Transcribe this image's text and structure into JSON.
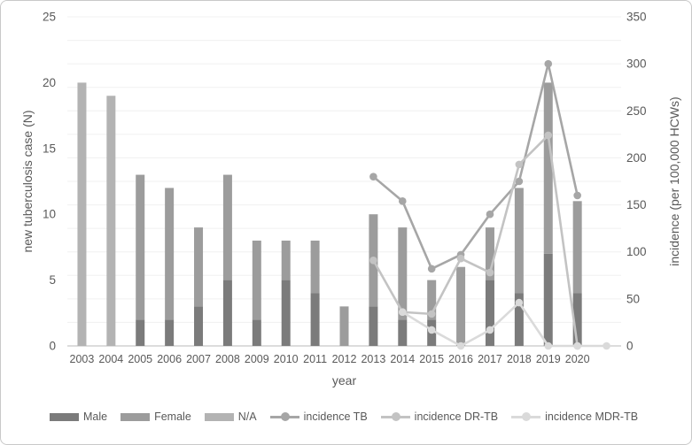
{
  "chart_data": {
    "type": "combo-bar-line",
    "xlabel": "year",
    "ylabel_left": "new tuberculosis case (N)",
    "ylabel_right": "incidence (per 100,000 HCWs)",
    "ylim_left": [
      0,
      25
    ],
    "ytick_left_step": 5,
    "ylim_right": [
      0,
      350
    ],
    "ytick_right_step": 50,
    "grid_step_right": 25,
    "grid_on": true,
    "legend_position": "bottom",
    "categories": [
      "2003",
      "2004",
      "2005",
      "2006",
      "2007",
      "2008",
      "2009",
      "2010",
      "2011",
      "2012",
      "2013",
      "2014",
      "2015",
      "2016",
      "2017",
      "2018",
      "2019",
      "2020",
      ""
    ],
    "bar_series": [
      {
        "name": "Male",
        "color": "#7b7b7b",
        "axis": "left",
        "values": [
          0,
          0,
          2,
          2,
          3,
          5,
          2,
          5,
          4,
          0,
          3,
          2,
          2,
          0,
          5,
          4,
          7,
          4,
          null
        ]
      },
      {
        "name": "Female",
        "color": "#9c9c9c",
        "axis": "left",
        "values": [
          0,
          0,
          11,
          10,
          6,
          8,
          6,
          3,
          4,
          3,
          7,
          7,
          3,
          6,
          4,
          8,
          13,
          7,
          null
        ]
      },
      {
        "name": "N/A",
        "color": "#b3b3b3",
        "axis": "left",
        "values": [
          20,
          19,
          0,
          0,
          0,
          0,
          0,
          0,
          0,
          0,
          0,
          0,
          0,
          0,
          0,
          0,
          0,
          0,
          null
        ]
      }
    ],
    "line_series": [
      {
        "name": "incidence TB",
        "color": "#a6a6a6",
        "axis": "right",
        "values": [
          null,
          null,
          null,
          null,
          null,
          null,
          null,
          null,
          null,
          null,
          180,
          154,
          82,
          97,
          140,
          175,
          300,
          160,
          null
        ]
      },
      {
        "name": "incidence DR-TB",
        "color": "#c3c3c3",
        "axis": "right",
        "values": [
          null,
          null,
          null,
          null,
          null,
          null,
          null,
          null,
          null,
          null,
          91,
          36,
          34,
          93,
          78,
          193,
          224,
          0,
          null
        ]
      },
      {
        "name": "incidence MDR-TB",
        "color": "#dadada",
        "axis": "right",
        "values": [
          null,
          null,
          null,
          null,
          null,
          null,
          null,
          null,
          null,
          null,
          null,
          36,
          17,
          0,
          17,
          46,
          0,
          0,
          0
        ]
      }
    ],
    "axis_text_color": "#595959",
    "gridline_color": "#f0f0f0",
    "baseline_color": "#c6c6c6"
  }
}
